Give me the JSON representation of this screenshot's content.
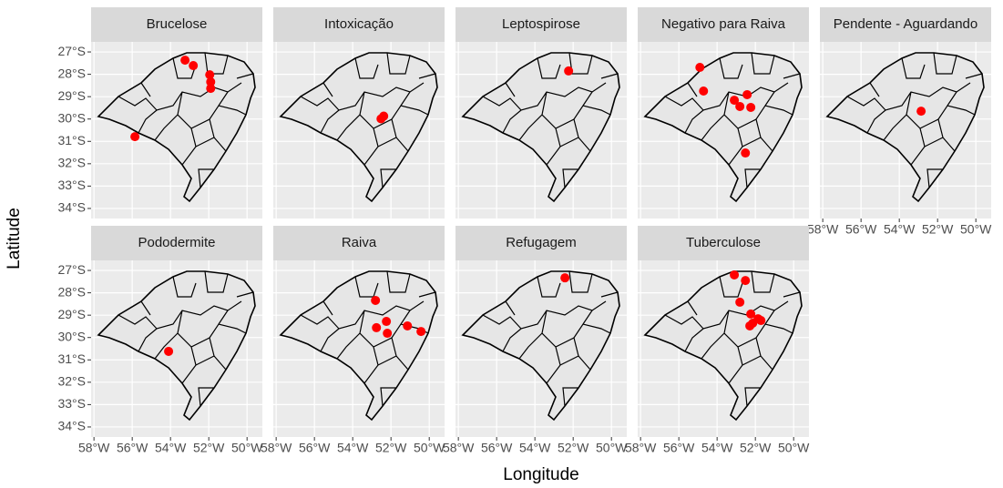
{
  "chart_data": {
    "type": "scatter",
    "xlabel": "Longitude",
    "ylabel": "Latitude",
    "color": "#ff0000",
    "grid": true,
    "xlim": [
      -58.15,
      -49.2
    ],
    "ylim": [
      -34.45,
      -26.55
    ],
    "xticks": [
      {
        "value": -58,
        "label": "58°W"
      },
      {
        "value": -56,
        "label": "56°W"
      },
      {
        "value": -54,
        "label": "54°W"
      },
      {
        "value": -52,
        "label": "52°W"
      },
      {
        "value": -50,
        "label": "50°W"
      }
    ],
    "yticks": [
      {
        "value": -27,
        "label": "27°S"
      },
      {
        "value": -28,
        "label": "28°S"
      },
      {
        "value": -29,
        "label": "29°S"
      },
      {
        "value": -30,
        "label": "30°S"
      },
      {
        "value": -31,
        "label": "31°S"
      },
      {
        "value": -32,
        "label": "32°S"
      },
      {
        "value": -33,
        "label": "33°S"
      },
      {
        "value": -34,
        "label": "34°S"
      }
    ],
    "panels": [
      {
        "title": "Brucelose",
        "x": [
          -53.24,
          -52.81,
          -51.95,
          -51.9,
          -51.9,
          -55.86
        ],
        "y": [
          -27.37,
          -27.61,
          -28.02,
          -28.34,
          -28.63,
          -30.79
        ]
      },
      {
        "title": "Intoxicação",
        "x": [
          -52.38,
          -52.52
        ],
        "y": [
          -29.87,
          -29.99
        ]
      },
      {
        "title": "Leptospirose",
        "x": [
          -52.24
        ],
        "y": [
          -27.85
        ]
      },
      {
        "title": "Negativo para Raiva",
        "x": [
          -54.9,
          -54.71,
          -53.1,
          -52.81,
          -52.43,
          -52.24,
          -52.52
        ],
        "y": [
          -27.69,
          -28.75,
          -29.16,
          -29.44,
          -28.91,
          -29.48,
          -31.52
        ]
      },
      {
        "title": "Pendente - Aguardando",
        "x": [
          -52.86
        ],
        "y": [
          -29.65
        ]
      },
      {
        "title": "Pododermite",
        "x": [
          -54.1
        ],
        "y": [
          -30.62
        ]
      },
      {
        "title": "Raiva",
        "x": [
          -52.81,
          -52.76,
          -52.24,
          -52.19,
          -51.14,
          -50.43
        ],
        "y": [
          -28.34,
          -29.56,
          -29.28,
          -29.81,
          -29.48,
          -29.73
        ]
      },
      {
        "title": "Refugagem",
        "x": [
          -52.43
        ],
        "y": [
          -27.33
        ]
      },
      {
        "title": "Tuberculose",
        "x": [
          -53.1,
          -52.52,
          -52.81,
          -52.24,
          -52.14,
          -51.86,
          -51.71,
          -52.29
        ],
        "y": [
          -27.2,
          -27.45,
          -28.42,
          -28.95,
          -29.36,
          -29.16,
          -29.24,
          -29.48
        ]
      }
    ]
  }
}
